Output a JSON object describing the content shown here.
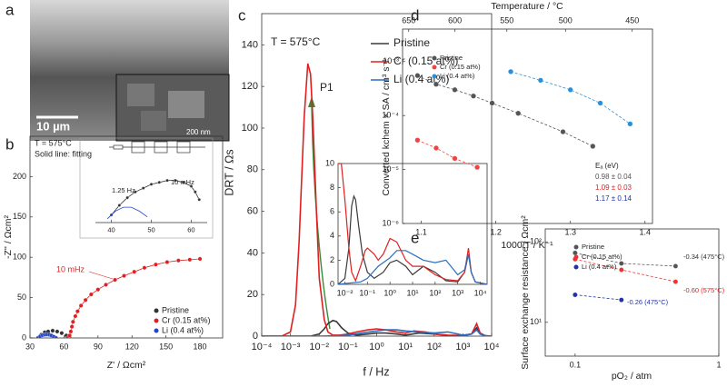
{
  "image_panel": {
    "panel_label": "a",
    "scale_bars": [
      "10 µm",
      "200 nm"
    ]
  },
  "chart_data": [
    {
      "type": "scatter",
      "panel_label": "b",
      "xlabel": "Z' / Ωcm²",
      "ylabel": "-Z'' / Ωcm²",
      "xlim": [
        30,
        200
      ],
      "ylim": [
        0,
        250
      ],
      "xticks": [
        30,
        60,
        90,
        120,
        150,
        180
      ],
      "yticks": [
        0,
        50,
        100,
        150,
        200
      ],
      "annotations": [
        "T = 575°C",
        "Solid line: fitting",
        {
          "text": "10 mHz",
          "color": "#e02020"
        }
      ],
      "series": [
        {
          "name": "Pristine",
          "color": "#333333",
          "x": [
            38,
            40,
            43,
            46,
            50,
            54,
            58,
            62,
            65
          ],
          "values": [
            0,
            4,
            7,
            8,
            9,
            8,
            6,
            3,
            0
          ]
        },
        {
          "name": "Cr (0.15 at%)",
          "color": "#e02020",
          "line_style": "solid",
          "x": [
            63,
            65,
            66,
            67,
            68,
            70,
            72,
            75,
            79,
            84,
            90,
            97,
            105,
            113,
            122,
            131,
            141,
            151,
            161,
            171,
            180
          ],
          "values": [
            0,
            3,
            8,
            14,
            20,
            27,
            33,
            40,
            47,
            54,
            60,
            66,
            72,
            77,
            82,
            87,
            91,
            94,
            96,
            97,
            98
          ]
        },
        {
          "name": "Li (0.4 at%)",
          "color": "#2244cc",
          "x": [
            37,
            39,
            41,
            43,
            45,
            47,
            49,
            51,
            53
          ],
          "values": [
            0,
            2,
            3.5,
            4,
            4.2,
            4,
            3,
            1.5,
            0
          ]
        }
      ]
    },
    {
      "type": "scatter",
      "xlim": [
        36,
        64
      ],
      "ylim": [
        0,
        14
      ],
      "xticks": [
        40,
        50,
        60
      ],
      "annotations": [
        "1.25 Hz",
        "10 mHz"
      ],
      "series": [
        {
          "color": "#333333",
          "line_style": "solid",
          "x": [
            40,
            42,
            44,
            46,
            48,
            50,
            52,
            54,
            56,
            58,
            60,
            61,
            62
          ],
          "values": [
            2,
            4.5,
            6.5,
            8,
            9,
            10,
            10.5,
            11,
            11,
            10.5,
            9.5,
            8,
            6
          ]
        },
        {
          "color": "#2244cc",
          "line_style": "solid",
          "markers": false,
          "x": [
            39,
            41,
            43,
            45,
            47,
            49
          ],
          "values": [
            1,
            3,
            4,
            4,
            3,
            1.5
          ]
        }
      ]
    },
    {
      "type": "line",
      "panel_label": "c",
      "xlabel": "f / Hz",
      "ylabel": "DRT / Ωs",
      "xscale": "log",
      "xlim": [
        0.0001,
        10000
      ],
      "ylim": [
        0,
        155
      ],
      "xticks": [
        {
          "value": 0.0001,
          "label": "10⁻⁴"
        },
        {
          "value": 0.001,
          "label": "10⁻³"
        },
        {
          "value": 0.01,
          "label": "10⁻²"
        },
        {
          "value": 0.1,
          "label": "10⁻¹"
        },
        {
          "value": 1,
          "label": "10⁰"
        },
        {
          "value": 10,
          "label": "10¹"
        },
        {
          "value": 100,
          "label": "10²"
        },
        {
          "value": 1000,
          "label": "10³"
        },
        {
          "value": 10000,
          "label": "10⁴"
        }
      ],
      "yticks": [
        0,
        20,
        40,
        60,
        80,
        100,
        120,
        140
      ],
      "annotations": [
        "T = 575°C",
        "P1"
      ],
      "series": [
        {
          "name": "Pristine",
          "color": "#3a3a3a",
          "x": [
            0.0001,
            0.005,
            0.01,
            0.015,
            0.02,
            0.03,
            0.04,
            0.06,
            0.1,
            0.2,
            0.5,
            1,
            2,
            5,
            10,
            30,
            100,
            300,
            1000,
            2000,
            3000,
            4000,
            6000,
            10000
          ],
          "values": [
            0,
            0,
            1,
            3.5,
            6,
            7.5,
            7,
            4,
            1.5,
            0.5,
            1,
            1.5,
            1.5,
            1,
            0.5,
            1.5,
            1,
            0.3,
            0.2,
            1,
            4,
            1,
            0.2,
            0
          ]
        },
        {
          "name": "Cr (0.15 at%)",
          "color": "#e02020",
          "x": [
            0.0001,
            0.0005,
            0.001,
            0.0015,
            0.002,
            0.003,
            0.004,
            0.005,
            0.006,
            0.008,
            0.01,
            0.015,
            0.02,
            0.03,
            0.05,
            0.1,
            0.2,
            0.5,
            1,
            2,
            5,
            10,
            20,
            50,
            100,
            300,
            1000,
            2000,
            3000,
            4000,
            6000,
            10000
          ],
          "values": [
            0,
            0,
            2,
            15,
            45,
            105,
            131,
            126,
            105,
            60,
            28,
            8,
            2,
            0.5,
            0.5,
            1,
            2,
            3,
            3.5,
            3,
            2,
            1.5,
            2.5,
            2,
            1,
            0.5,
            0.3,
            1,
            6,
            1.5,
            0.2,
            0
          ]
        },
        {
          "name": "Li (0.4 at%)",
          "color": "#2a6fc0",
          "x": [
            0.0001,
            0.01,
            0.05,
            0.1,
            0.3,
            1,
            2,
            5,
            10,
            30,
            100,
            300,
            1000,
            2000,
            3000,
            4000,
            6000,
            10000
          ],
          "values": [
            0,
            0,
            0.2,
            0.5,
            1.5,
            2.5,
            3,
            3,
            2.5,
            2,
            1.5,
            2,
            0.5,
            1,
            3,
            1,
            0.2,
            0
          ]
        }
      ]
    },
    {
      "type": "line",
      "xscale": "log",
      "xlim": [
        0.005,
        20000
      ],
      "ylim": [
        0,
        10
      ],
      "xticks": [
        {
          "value": 0.01,
          "label": "10⁻²"
        },
        {
          "value": 0.1,
          "label": "10⁻¹"
        },
        {
          "value": 1,
          "label": "10⁰"
        },
        {
          "value": 10,
          "label": "10¹"
        },
        {
          "value": 100,
          "label": "10²"
        },
        {
          "value": 1000,
          "label": "10³"
        },
        {
          "value": 10000,
          "label": "10⁴"
        }
      ],
      "yticks": [
        0,
        2,
        4,
        6,
        8,
        10
      ],
      "series": [
        {
          "color": "#3a3a3a",
          "x": [
            0.005,
            0.01,
            0.015,
            0.02,
            0.025,
            0.03,
            0.04,
            0.06,
            0.1,
            0.2,
            0.5,
            1,
            2,
            5,
            10,
            30,
            100,
            300,
            1000,
            2000,
            3000,
            4000,
            6000,
            20000
          ],
          "values": [
            0,
            0.5,
            3,
            6.5,
            7.3,
            7,
            5,
            2.5,
            1,
            0.5,
            1,
            1.8,
            2,
            1.5,
            0.8,
            1.5,
            1,
            0.3,
            0.2,
            1,
            2.5,
            1,
            0.2,
            0
          ]
        },
        {
          "color": "#e02020",
          "x": [
            0.005,
            0.007,
            0.01,
            0.015,
            0.02,
            0.03,
            0.05,
            0.08,
            0.1,
            0.2,
            0.3,
            0.5,
            1,
            2,
            5,
            10,
            30,
            100,
            300,
            1000,
            2000,
            3000,
            4000,
            6000,
            20000
          ],
          "values": [
            10,
            10,
            7,
            3,
            1,
            0.3,
            1.5,
            2.8,
            3,
            2.5,
            2,
            2.5,
            3.8,
            3.5,
            2,
            1.5,
            1.5,
            0.8,
            0.4,
            0.3,
            1,
            3,
            1,
            0.2,
            0
          ]
        },
        {
          "color": "#2a6fc0",
          "x": [
            0.005,
            0.05,
            0.1,
            0.3,
            1,
            2,
            5,
            10,
            30,
            100,
            300,
            1000,
            2000,
            3000,
            4000,
            6000,
            20000
          ],
          "values": [
            0,
            0.2,
            0.5,
            1.5,
            2.2,
            2.8,
            2.8,
            2.5,
            2,
            1.8,
            2,
            0.8,
            1.2,
            2.5,
            1,
            0.2,
            0
          ]
        }
      ]
    },
    {
      "type": "scatter",
      "panel_label": "d",
      "xlabel": "1000/T / K⁻¹",
      "ylabel": "Converted kchem × SA / cm³ s⁻¹",
      "x2label": "Temperature / °C",
      "x2ticks": [
        650,
        600,
        550,
        500,
        450
      ],
      "yscale": "log",
      "xlim": [
        1.075,
        1.41
      ],
      "ylim": [
        1e-06,
        0.004
      ],
      "xticks": [
        1.1,
        1.2,
        1.3,
        1.4
      ],
      "yticks": [
        {
          "value": 1e-06,
          "label": "10⁻⁶"
        },
        {
          "value": 1e-05,
          "label": "10⁻⁵"
        },
        {
          "value": 0.0001,
          "label": "10⁻⁴"
        },
        {
          "value": 0.001,
          "label": "10⁻³"
        }
      ],
      "annotations": [
        "Eₐ (eV)",
        {
          "text": "0.98 ± 0.04",
          "color": "#555555"
        },
        {
          "text": "1.09 ± 0.03",
          "color": "#e02020"
        },
        {
          "text": "1.17 ± 0.14",
          "color": "#2233aa"
        }
      ],
      "series": [
        {
          "name": "Pristine",
          "color": "#555555",
          "line_style": "dashed",
          "x": [
            1.095,
            1.12,
            1.145,
            1.17,
            1.195,
            1.23,
            1.29,
            1.33
          ],
          "values": [
            0.00055,
            0.00038,
            0.0003,
            0.00023,
            0.00017,
            0.00011,
            5e-05,
            2.7e-05
          ]
        },
        {
          "name": "Cr (0.15 at%)",
          "color": "#ee4444",
          "line_style": "dashed",
          "x": [
            1.095,
            1.12,
            1.145,
            1.175
          ],
          "values": [
            3.5e-05,
            2.5e-05,
            1.6e-05,
            1.1e-05
          ]
        },
        {
          "name": "Li (0.4 at%)",
          "color": "#2a8fd8",
          "line_style": "dashed",
          "x": [
            1.22,
            1.26,
            1.3,
            1.34,
            1.38
          ],
          "values": [
            0.00065,
            0.00045,
            0.0003,
            0.00017,
            7e-05
          ]
        }
      ]
    },
    {
      "type": "scatter",
      "panel_label": "e",
      "xlabel": "pO₂ / atm",
      "ylabel": "Surface exchange resistance / Ωcm²",
      "xscale": "log",
      "yscale": "log",
      "xlim": [
        0.062,
        1
      ],
      "ylim": [
        3.8,
        145
      ],
      "xticks": [
        0.1,
        1
      ],
      "yticks": [
        {
          "value": 10,
          "label": "10¹"
        },
        {
          "value": 100,
          "label": "10²"
        }
      ],
      "annotations": [
        {
          "text": "-0.34 (475°C)",
          "color": "#333333"
        },
        {
          "text": "-0.60 (575°C)",
          "color": "#e02020"
        },
        {
          "text": "-0.26 (475°C)",
          "color": "#2233aa"
        }
      ],
      "series": [
        {
          "name": "Pristine",
          "color": "#555555",
          "line_style": "dashed",
          "x": [
            0.1,
            0.21,
            0.5
          ],
          "values": [
            73,
            54,
            50
          ]
        },
        {
          "name": "Cr (0.15 at%)",
          "color": "#ee3333",
          "line_style": "dashed",
          "x": [
            0.1,
            0.21,
            0.5
          ],
          "values": [
            61,
            45,
            32
          ]
        },
        {
          "name": "Li (0.4 at%)",
          "color": "#2233aa",
          "line_style": "dashed",
          "x": [
            0.1,
            0.21
          ],
          "values": [
            22,
            19
          ]
        }
      ]
    }
  ]
}
